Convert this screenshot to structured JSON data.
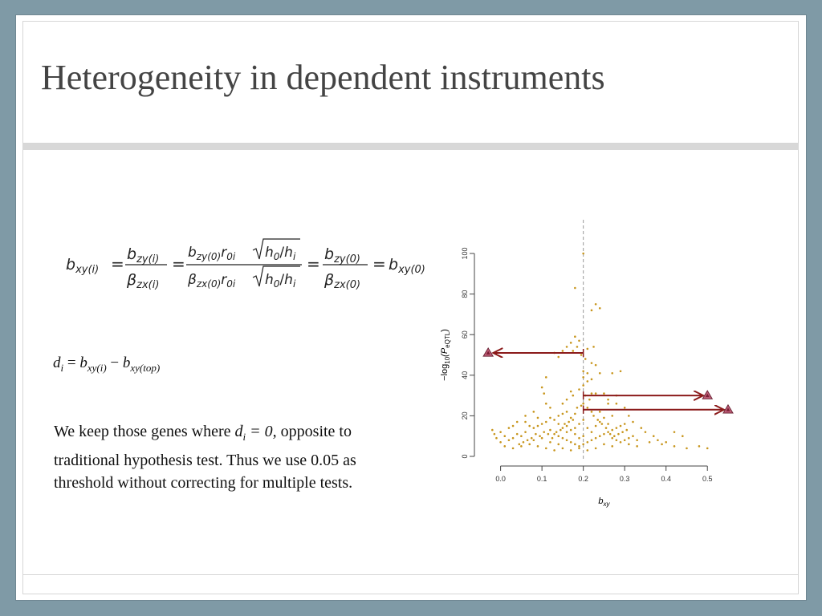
{
  "title": "Heterogeneity in dependent instruments",
  "formula_main": {
    "lhs": "b",
    "lhs_sub": "xy(i)",
    "f1_num": "b",
    "f1_num_sub": "zy(i)",
    "f1_den": "β",
    "f1_den_sub": "zx(i)",
    "f2_num": "b",
    "f2_num_sub": "zy(0)",
    "f2_num_r": "r",
    "f2_num_r_sub": "0i",
    "f2_den": "β",
    "f2_den_sub": "zx(0)",
    "f2_den_r": "r",
    "f2_den_r_sub": "0i",
    "sqrt_body": "h",
    "sqrt_h0_sub": "0",
    "sqrt_hi_sub": "i",
    "slash": "/",
    "f3_num": "b",
    "f3_num_sub": "zy(0)",
    "f3_den": "β",
    "f3_den_sub": "zx(0)",
    "rhs": "b",
    "rhs_sub": "xy(0)",
    "equals": "="
  },
  "formula_di": {
    "d": "d",
    "d_sub": "i",
    "eq": " = ",
    "b1": "b",
    "b1_sub": "xy(i)",
    "minus": " − ",
    "b2": "b",
    "b2_sub": "xy(top)"
  },
  "body_text": {
    "part1": "We keep those genes where ",
    "di_d": "d",
    "di_sub": "i",
    "di_rest": " = 0,",
    "part2": " opposite to traditional hypothesis test. Thus we use 0.05 as threshold without correcting for multiple tests."
  },
  "chart_data": {
    "type": "scatter",
    "xlabel": "b",
    "xlabel_sub": "xy",
    "ylabel_pre": "−log",
    "ylabel_sub1": "10",
    "ylabel_mid": "(P",
    "ylabel_sub2": "eQTL",
    "ylabel_post": ")",
    "xlim": [
      -0.04,
      0.55
    ],
    "ylim": [
      0,
      100
    ],
    "x_ticks": [
      "0.0",
      "0.1",
      "0.2",
      "0.3",
      "0.4",
      "0.5"
    ],
    "y_ticks": [
      "0",
      "20",
      "40",
      "60",
      "80",
      "100"
    ],
    "vline_x": 0.2,
    "colors": {
      "points": "#c8961e",
      "arrows": "#8b1a1a",
      "triangle_fill": "#c2607a",
      "vline": "#999999"
    },
    "highlighted_points": [
      {
        "x": -0.03,
        "y": 51
      },
      {
        "x": 0.5,
        "y": 30
      },
      {
        "x": 0.55,
        "y": 23
      }
    ],
    "arrows": [
      {
        "from_x": 0.2,
        "to_x": -0.018,
        "y": 51
      },
      {
        "from_x": 0.2,
        "to_x": 0.49,
        "y": 30
      },
      {
        "from_x": 0.2,
        "to_x": 0.54,
        "y": 23
      }
    ],
    "points": [
      [
        0.18,
        83
      ],
      [
        0.22,
        72
      ],
      [
        0.23,
        75
      ],
      [
        0.24,
        73
      ],
      [
        0.2,
        100
      ],
      [
        0.18,
        59
      ],
      [
        0.17,
        56
      ],
      [
        0.19,
        57
      ],
      [
        0.185,
        54
      ],
      [
        0.16,
        54
      ],
      [
        0.15,
        52
      ],
      [
        0.13,
        51
      ],
      [
        0.14,
        49
      ],
      [
        0.21,
        53
      ],
      [
        0.225,
        54
      ],
      [
        0.175,
        52
      ],
      [
        0.195,
        50
      ],
      [
        0.205,
        48
      ],
      [
        0.22,
        46
      ],
      [
        0.23,
        45
      ],
      [
        0.2,
        42
      ],
      [
        0.21,
        41
      ],
      [
        0.24,
        41
      ],
      [
        0.27,
        41
      ],
      [
        0.29,
        42
      ],
      [
        0.2,
        39
      ],
      [
        0.22,
        38
      ],
      [
        0.11,
        39
      ],
      [
        0.1,
        34
      ],
      [
        0.105,
        31
      ],
      [
        0.17,
        32
      ],
      [
        0.175,
        30
      ],
      [
        0.19,
        33
      ],
      [
        0.22,
        31
      ],
      [
        0.23,
        31
      ],
      [
        0.25,
        31
      ],
      [
        0.26,
        28
      ],
      [
        0.28,
        26
      ],
      [
        0.3,
        24
      ],
      [
        0.31,
        20
      ],
      [
        0.27,
        20
      ],
      [
        0.24,
        22
      ],
      [
        0.22,
        22
      ],
      [
        0.21,
        24
      ],
      [
        0.2,
        26
      ],
      [
        0.18,
        21
      ],
      [
        0.17,
        19
      ],
      [
        0.16,
        22
      ],
      [
        0.15,
        21
      ],
      [
        0.14,
        20
      ],
      [
        0.13,
        18
      ],
      [
        0.12,
        19
      ],
      [
        0.11,
        17
      ],
      [
        0.1,
        16
      ],
      [
        0.09,
        15
      ],
      [
        0.08,
        14
      ],
      [
        0.07,
        15
      ],
      [
        0.06,
        12
      ],
      [
        0.05,
        10
      ],
      [
        0.04,
        11
      ],
      [
        0.03,
        9
      ],
      [
        0.02,
        8
      ],
      [
        0.01,
        10
      ],
      [
        0.0,
        7
      ],
      [
        -0.01,
        9
      ],
      [
        -0.02,
        13
      ],
      [
        -0.015,
        11
      ],
      [
        0.0,
        12
      ],
      [
        0.03,
        15
      ],
      [
        0.06,
        17
      ],
      [
        0.09,
        19
      ],
      [
        0.12,
        13
      ],
      [
        0.13,
        11
      ],
      [
        0.14,
        10
      ],
      [
        0.15,
        9
      ],
      [
        0.16,
        8
      ],
      [
        0.17,
        7
      ],
      [
        0.18,
        6
      ],
      [
        0.19,
        5
      ],
      [
        0.2,
        6
      ],
      [
        0.21,
        7
      ],
      [
        0.22,
        8
      ],
      [
        0.23,
        9
      ],
      [
        0.24,
        10
      ],
      [
        0.25,
        11
      ],
      [
        0.26,
        12
      ],
      [
        0.27,
        13
      ],
      [
        0.28,
        14
      ],
      [
        0.29,
        15
      ],
      [
        0.3,
        16
      ],
      [
        0.32,
        17
      ],
      [
        0.34,
        14
      ],
      [
        0.35,
        12
      ],
      [
        0.37,
        10
      ],
      [
        0.38,
        8
      ],
      [
        0.39,
        6
      ],
      [
        0.4,
        7
      ],
      [
        0.42,
        5
      ],
      [
        0.45,
        4
      ],
      [
        0.48,
        5
      ],
      [
        0.5,
        4
      ],
      [
        0.31,
        6
      ],
      [
        0.33,
        5
      ],
      [
        0.27,
        5
      ],
      [
        0.25,
        6
      ],
      [
        0.23,
        4
      ],
      [
        0.21,
        3
      ],
      [
        0.19,
        4
      ],
      [
        0.17,
        3
      ],
      [
        0.15,
        4
      ],
      [
        0.13,
        3
      ],
      [
        0.11,
        4
      ],
      [
        0.09,
        5
      ],
      [
        0.07,
        6
      ],
      [
        0.05,
        5
      ],
      [
        0.03,
        4
      ],
      [
        0.01,
        5
      ],
      [
        0.08,
        8
      ],
      [
        0.1,
        9
      ],
      [
        0.12,
        7
      ],
      [
        0.14,
        6
      ],
      [
        0.16,
        12
      ],
      [
        0.18,
        14
      ],
      [
        0.19,
        16
      ],
      [
        0.2,
        18
      ],
      [
        0.21,
        14
      ],
      [
        0.22,
        12
      ],
      [
        0.23,
        15
      ],
      [
        0.24,
        17
      ],
      [
        0.25,
        19
      ],
      [
        0.26,
        16
      ],
      [
        0.27,
        9
      ],
      [
        0.28,
        8
      ],
      [
        0.29,
        7
      ],
      [
        0.3,
        8
      ],
      [
        0.31,
        9
      ],
      [
        0.32,
        10
      ],
      [
        0.33,
        8
      ],
      [
        0.2,
        10
      ],
      [
        0.19,
        9
      ],
      [
        0.18,
        11
      ],
      [
        0.17,
        13
      ],
      [
        0.16,
        15
      ],
      [
        0.15,
        14
      ],
      [
        0.14,
        16
      ],
      [
        0.135,
        12
      ],
      [
        0.125,
        9
      ],
      [
        0.115,
        11
      ],
      [
        0.105,
        12
      ],
      [
        0.095,
        10
      ],
      [
        0.085,
        11
      ],
      [
        0.075,
        9
      ],
      [
        0.065,
        8
      ],
      [
        0.055,
        7
      ],
      [
        0.045,
        6
      ],
      [
        0.42,
        12
      ],
      [
        0.36,
        7
      ],
      [
        0.44,
        10
      ],
      [
        0.28,
        30
      ],
      [
        0.26,
        26
      ],
      [
        0.2,
        35
      ],
      [
        0.21,
        37
      ],
      [
        0.15,
        26
      ],
      [
        0.16,
        28
      ],
      [
        0.12,
        24
      ],
      [
        0.11,
        26
      ],
      [
        0.08,
        22
      ],
      [
        0.06,
        20
      ],
      [
        0.04,
        17
      ],
      [
        0.02,
        14
      ],
      [
        0.215,
        28
      ],
      [
        0.205,
        30
      ],
      [
        0.195,
        25
      ],
      [
        0.185,
        24
      ],
      [
        0.175,
        18
      ],
      [
        0.165,
        17
      ],
      [
        0.155,
        16
      ],
      [
        0.145,
        13
      ],
      [
        0.225,
        20
      ],
      [
        0.235,
        18
      ],
      [
        0.245,
        16
      ],
      [
        0.255,
        14
      ],
      [
        0.265,
        11
      ],
      [
        0.275,
        10
      ],
      [
        0.285,
        11
      ],
      [
        0.295,
        12
      ],
      [
        0.305,
        13
      ]
    ]
  }
}
